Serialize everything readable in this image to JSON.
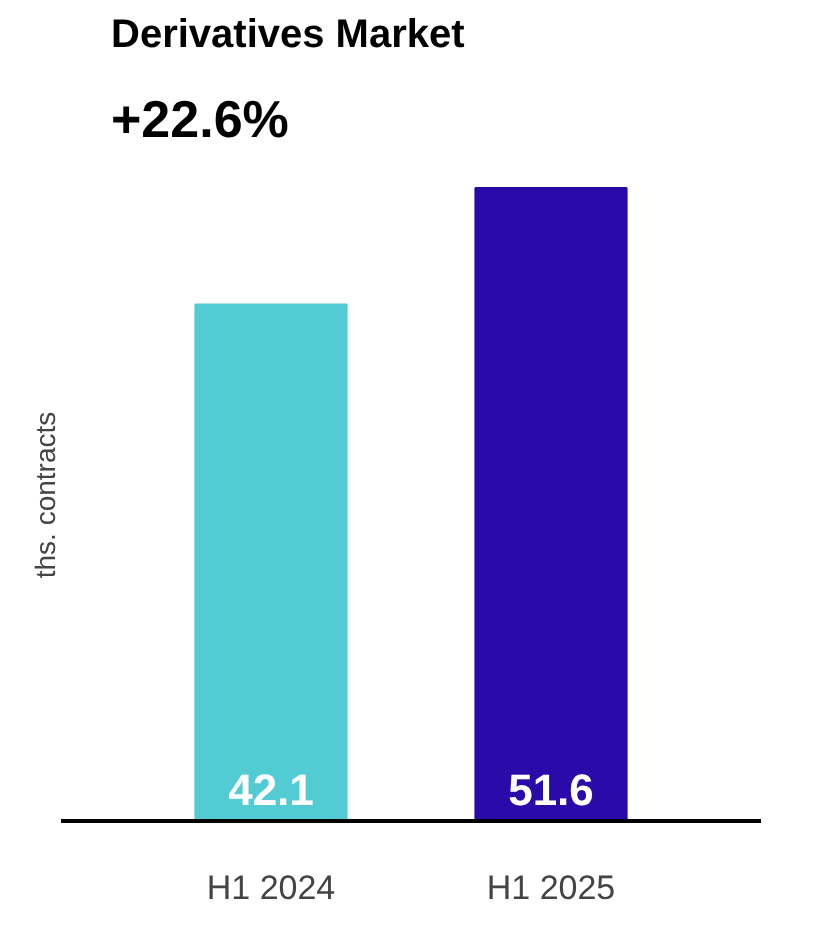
{
  "chart_data": {
    "type": "bar",
    "title": "Derivatives Market",
    "subtitle": "+22.6%",
    "ylabel": "ths. contracts",
    "categories": [
      "H1 2024",
      "H1 2025"
    ],
    "values": [
      42.1,
      51.6
    ],
    "colors": [
      "#52cbd3",
      "#2a0aa8"
    ],
    "data_labels": true,
    "grid": false
  }
}
